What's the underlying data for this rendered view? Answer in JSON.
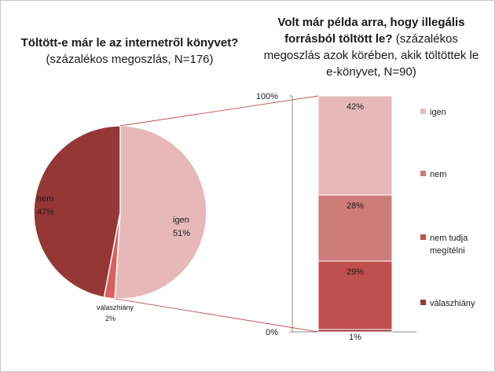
{
  "pie_title": {
    "bold": "Töltött-e már le az internetről könyvet?",
    "normal": " (százalékos megoszlás, N=176)"
  },
  "bar_title": {
    "bold": "Volt már példa arra, hogy illegális forrásból töltött le?",
    "normal": " (százalékos megoszlás azok körében, akik töltöttek le e-könyvet, N=90)"
  },
  "colors": {
    "igen_pie": "#e6b9b8",
    "nem_pie": "#953735",
    "valaszhiany_pie": "#d9605c",
    "bar_igen": "#e6b9b8",
    "bar_nem": "#cd7b79",
    "bar_nemtudja": "#c0504d",
    "bar_valaszhiany": "#953735",
    "connector": "#c0504d"
  },
  "chart_data": [
    {
      "type": "pie",
      "slices": [
        {
          "label": "igen",
          "value": 51,
          "display": "51%"
        },
        {
          "label": "válaszhiány",
          "value": 2,
          "display": "2%"
        },
        {
          "label": "nem",
          "value": 47,
          "display": "47%"
        }
      ]
    },
    {
      "type": "bar",
      "stacked": true,
      "ylim": [
        0,
        100
      ],
      "yticks": [
        "0%",
        "100%"
      ],
      "series": [
        {
          "name": "válaszhiány",
          "value": 1,
          "display": "1%"
        },
        {
          "name": "nem tudja megítélni",
          "value": 29,
          "display": "29%"
        },
        {
          "name": "nem",
          "value": 28,
          "display": "28%"
        },
        {
          "name": "igen",
          "value": 42,
          "display": "42%"
        }
      ],
      "legend": [
        {
          "name": "igen"
        },
        {
          "name": "nem"
        },
        {
          "name": "nem tudja megítélni"
        },
        {
          "name": "válaszhiány"
        }
      ],
      "legend_placement": "right"
    }
  ]
}
